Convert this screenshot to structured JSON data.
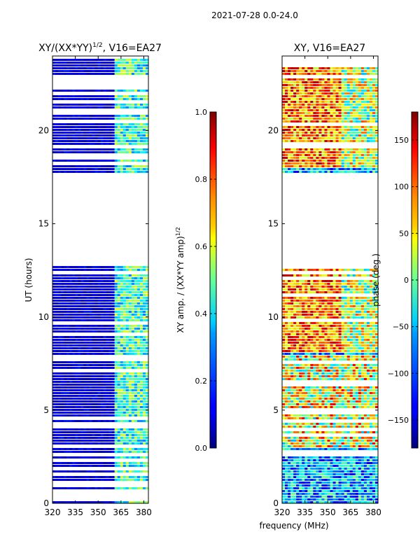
{
  "suptitle": "2021-07-28 0.0-24.0",
  "xlabel": "frequency (MHz)",
  "chart_data": [
    {
      "type": "heatmap",
      "title": "XY/(XX*YY)",
      "title_sup": "1/2",
      "title_suffix": ", V16=EA27",
      "ylabel": "UT (hours)",
      "xlim": [
        320,
        383
      ],
      "ylim": [
        0,
        24
      ],
      "xticks": [
        320,
        335,
        350,
        365,
        380
      ],
      "yticks": [
        0,
        5,
        10,
        15,
        20
      ],
      "data_gap_hours": [
        17.7,
        12.8
      ],
      "colorbar": {
        "label": "XY amp. / (XX*YY amp)",
        "label_sup": "1/2",
        "range": [
          0.0,
          1.0
        ],
        "ticks": [
          "0.0",
          "0.2",
          "0.4",
          "0.6",
          "0.8",
          "1.0"
        ],
        "colormap": "jet"
      }
    },
    {
      "type": "heatmap",
      "title": "XY, V16=EA27",
      "ylabel": "",
      "xlim": [
        320,
        383
      ],
      "ylim": [
        0,
        24
      ],
      "xticks": [
        320,
        335,
        350,
        365,
        380
      ],
      "yticks": [
        0,
        5,
        10,
        15,
        20
      ],
      "data_gap_hours": [
        17.7,
        12.8
      ],
      "colorbar": {
        "label": "phase (deg.)",
        "range": [
          -180,
          180
        ],
        "ticks": [
          "-150",
          "-100",
          "-50",
          "0",
          "50",
          "100",
          "150"
        ],
        "colormap": "jet"
      }
    }
  ]
}
